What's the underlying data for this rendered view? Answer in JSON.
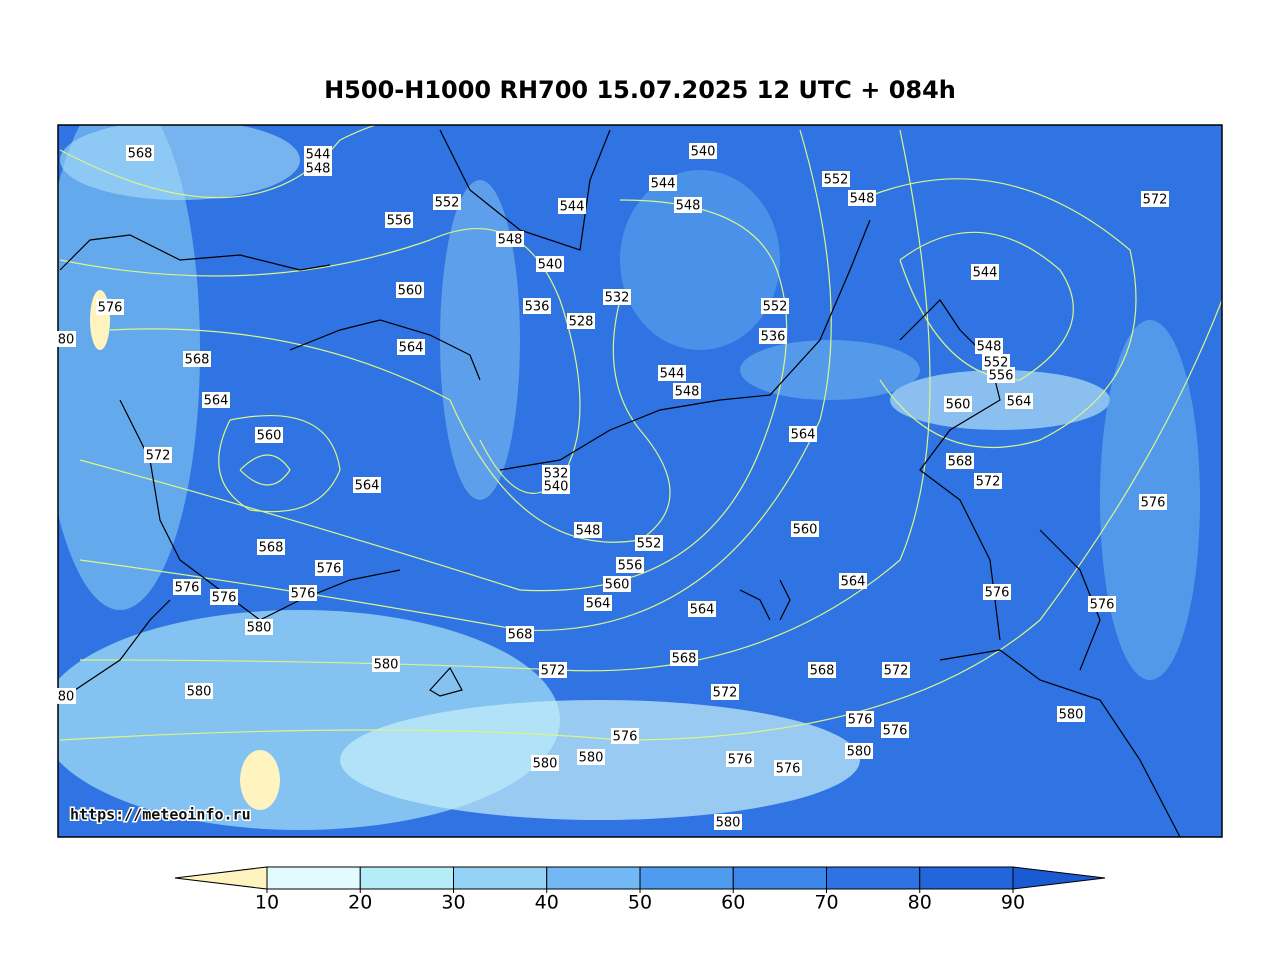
{
  "header": {
    "title": "H500-H1000 RH700 15.07.2025 12 UTC + 084h"
  },
  "map": {
    "watermark": "https://meteoinfo.ru",
    "contour_labels": [
      568,
      544,
      548,
      556,
      552,
      544,
      544,
      548,
      540,
      552,
      548,
      572,
      548,
      540,
      560,
      532,
      536,
      528,
      552,
      536,
      544,
      576,
      568,
      564,
      544,
      548,
      548,
      552,
      556,
      560,
      564,
      564,
      560,
      564,
      572,
      532,
      540,
      564,
      568,
      572,
      576,
      548,
      552,
      560,
      556,
      568,
      576,
      560,
      564,
      564,
      564,
      576,
      576,
      576,
      576,
      576,
      580,
      568,
      580,
      572,
      568,
      568,
      572,
      580,
      572,
      576,
      576,
      580,
      576,
      580,
      580,
      580,
      576,
      576,
      580,
      80,
      80
    ]
  },
  "colorbar": {
    "ticks": [
      10,
      20,
      30,
      40,
      50,
      60,
      70,
      80,
      90
    ],
    "colors": [
      "#fff4c0",
      "#e2fbff",
      "#b4ecf8",
      "#94d2f6",
      "#72b8f4",
      "#4e9cf0",
      "#3c86ea",
      "#2d73e4",
      "#2266dc",
      "#1a5ad2"
    ]
  }
}
